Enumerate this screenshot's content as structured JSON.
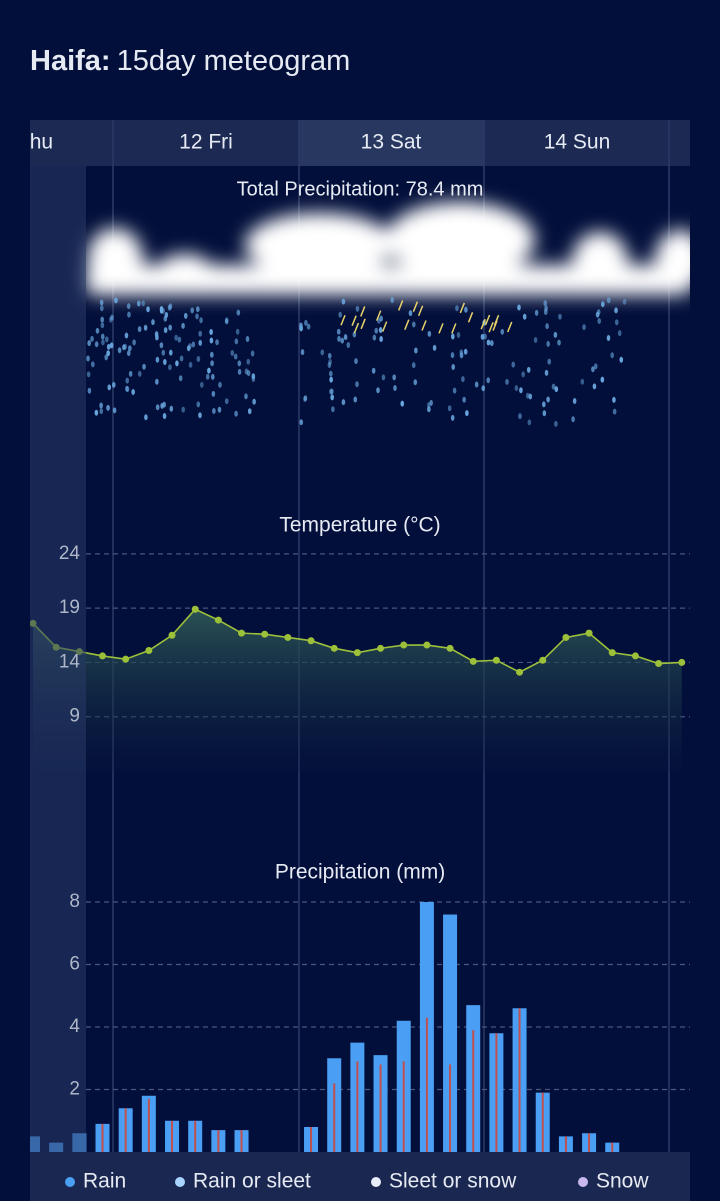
{
  "header": {
    "city": "Haifa:",
    "title": "15day meteogram"
  },
  "tabs": [
    "Thu",
    "12 Fri",
    "13 Sat",
    "14 Sun"
  ],
  "total_precipitation": "Total Precipitation: 78.4 mm",
  "chart_data": [
    {
      "type": "line",
      "title": "Temperature (°C)",
      "color": "#9dc03a",
      "values": [
        17.6,
        15.4,
        15.0,
        14.6,
        14.3,
        15.1,
        16.5,
        18.9,
        17.9,
        16.7,
        16.6,
        16.3,
        16.0,
        15.3,
        14.9,
        15.3,
        15.6,
        15.6,
        15.3,
        14.1,
        14.2,
        13.1,
        14.2,
        16.3,
        16.7,
        14.9,
        14.6,
        13.9,
        14.0
      ],
      "ylim": [
        4,
        25
      ],
      "yticks": [
        24,
        19,
        14,
        9
      ],
      "grid": true
    },
    {
      "type": "bar",
      "title": "Precipitation (mm)",
      "series": [
        {
          "color": "#4a9ff5",
          "values": [
            0.5,
            0.3,
            0.6,
            0.9,
            1.4,
            1.8,
            1.0,
            1.0,
            0.7,
            0.7,
            0,
            0,
            0.8,
            3.0,
            3.5,
            3.1,
            4.2,
            8.0,
            7.6,
            4.7,
            3.8,
            4.6,
            1.9,
            0.5,
            0.6,
            0.3,
            0,
            0,
            0
          ]
        },
        {
          "color": "#c0504d",
          "values": [
            null,
            null,
            null,
            0.9,
            1.4,
            1.7,
            1.0,
            1.0,
            0.7,
            0.7,
            null,
            null,
            0.8,
            2.2,
            2.9,
            2.8,
            2.9,
            4.3,
            2.8,
            3.9,
            3.8,
            4.6,
            1.9,
            0.5,
            0.6,
            0.3,
            null,
            null,
            null
          ]
        }
      ],
      "ylim": [
        0,
        8.5
      ],
      "yticks": [
        8,
        6,
        4,
        2
      ],
      "grid": true
    }
  ],
  "legend": [
    {
      "label": "Rain",
      "color": "#4a9ff5"
    },
    {
      "label": "Rain or sleet",
      "color": "#a8d4ff"
    },
    {
      "label": "Sleet or snow",
      "color": "#e8eef8"
    },
    {
      "label": "Snow",
      "color": "#c9b8f0"
    }
  ]
}
